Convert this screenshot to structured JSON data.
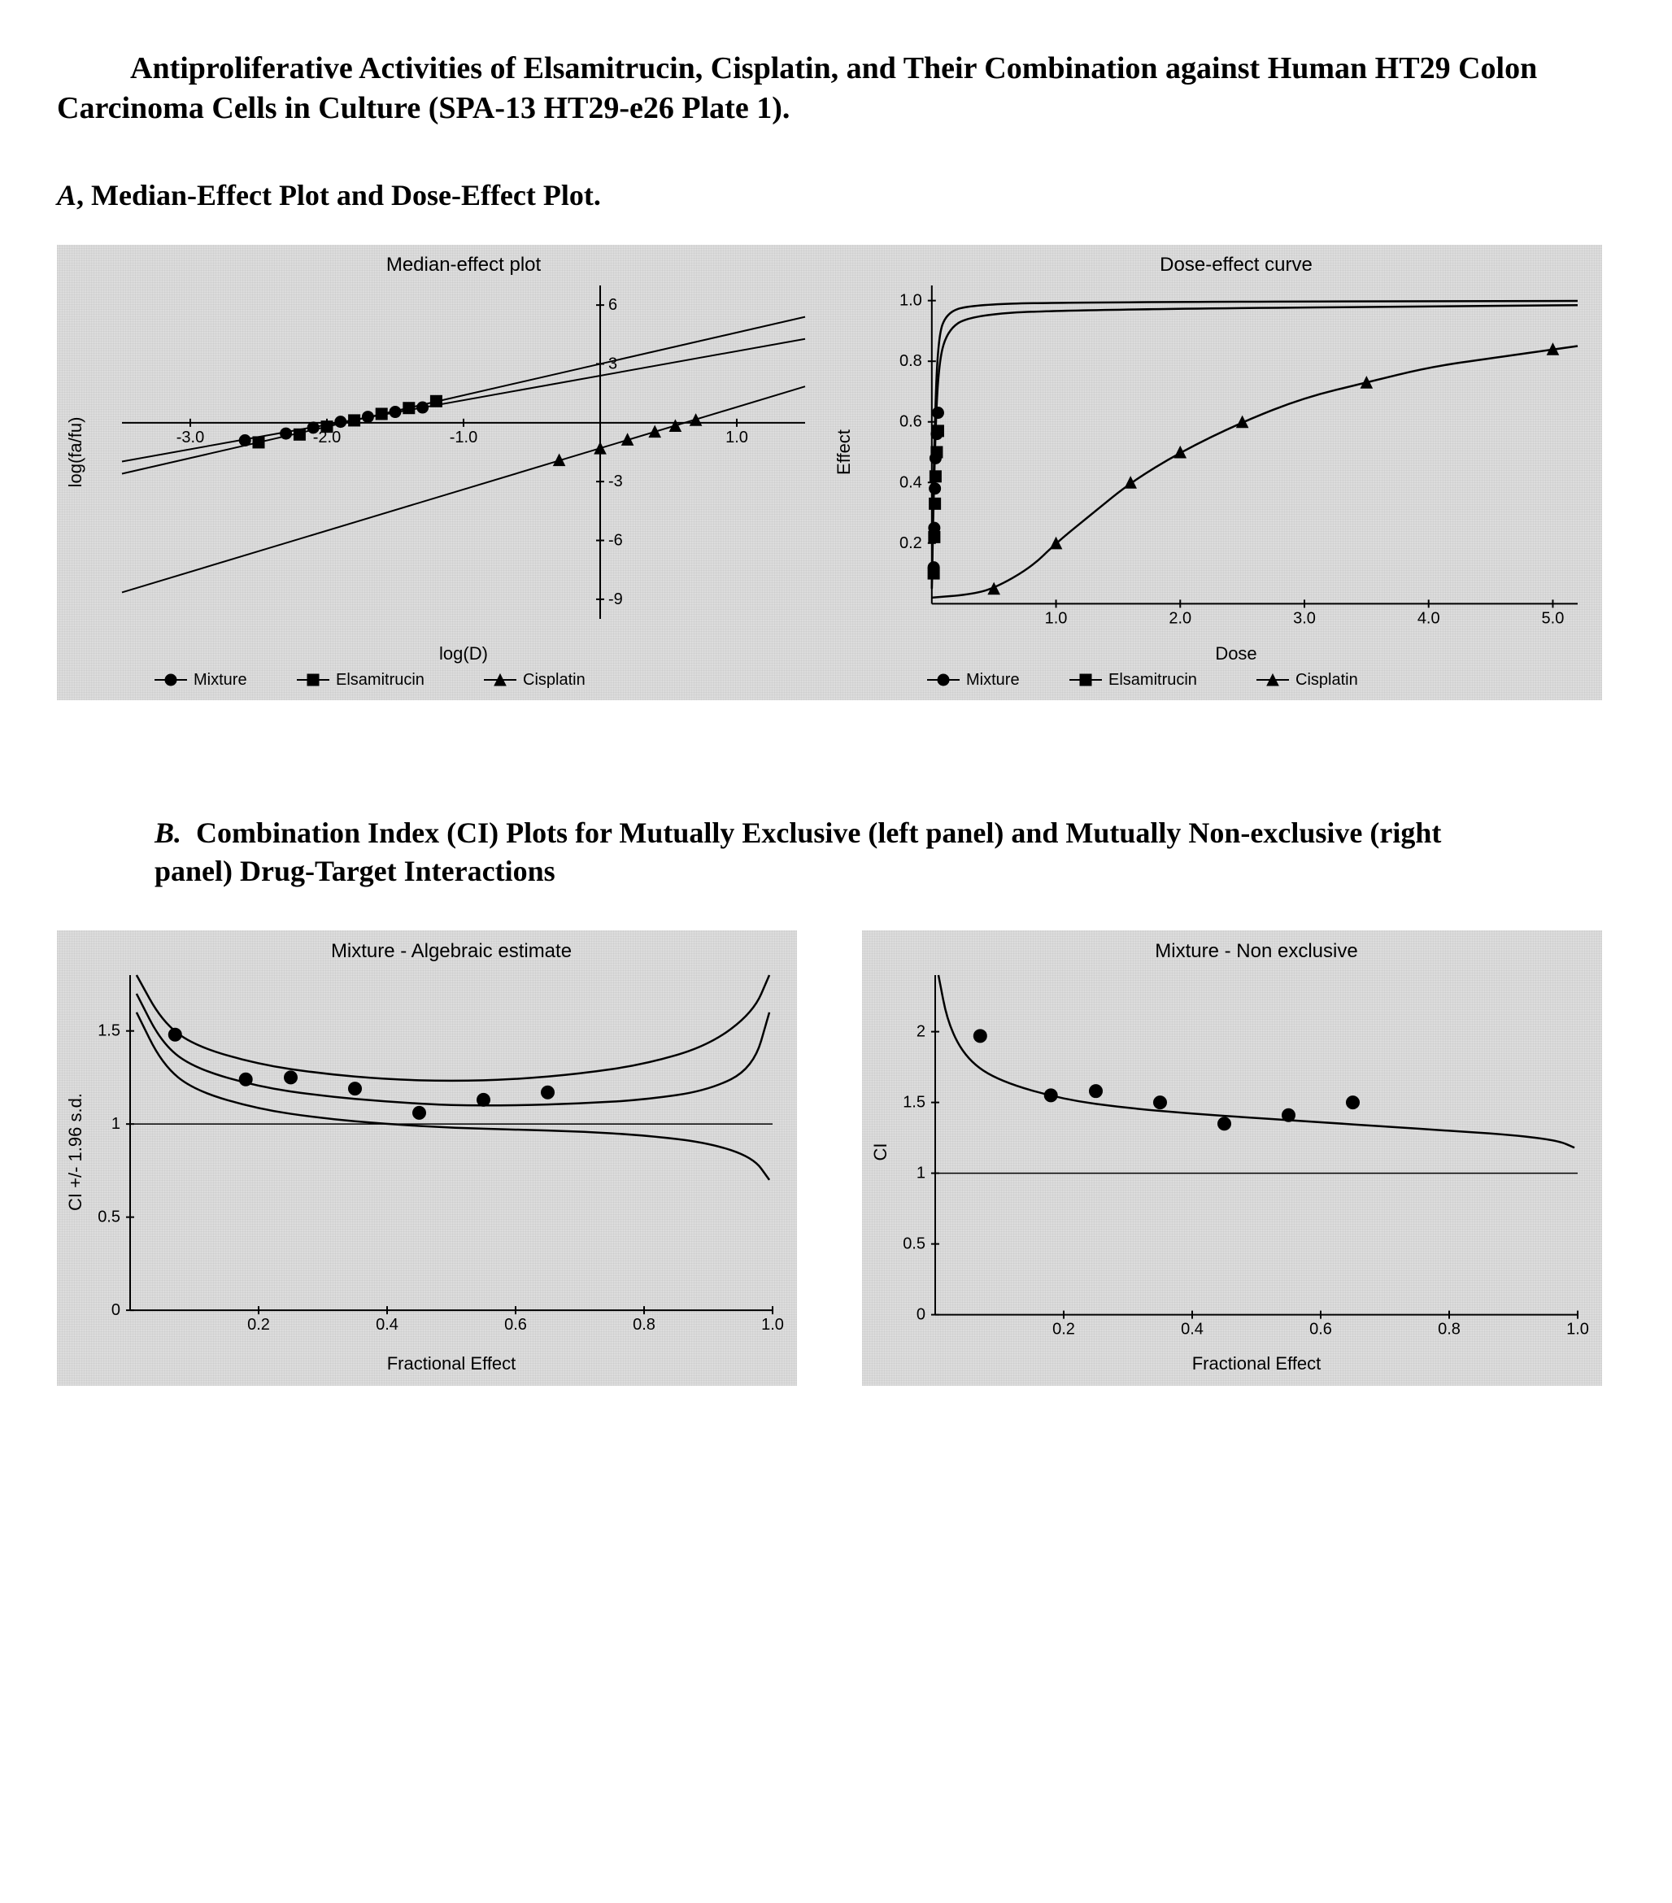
{
  "title": "Antiproliferative Activities of Elsamitrucin, Cisplatin, and Their Combination against Human HT29 Colon Carcinoma Cells in Culture (SPA-13 HT29-e26 Plate 1).",
  "sectionA_label_prefix": "A",
  "sectionA_label_text": ", Median-Effect Plot and Dose-Effect Plot.",
  "sectionB_label_prefix": "B.",
  "sectionB_label_text": "Combination Index (CI) Plots for Mutually Exclusive (left panel) and Mutually Non-exclusive (right panel) Drug-Target Interactions",
  "panelA_width": 1900,
  "panelA_height": 560,
  "median_effect": {
    "title": "Median-effect plot",
    "xlabel": "log(D)",
    "ylabel": "log(fa/fu)",
    "xlim": [
      -3.5,
      1.5
    ],
    "ylim": [
      -10,
      7
    ],
    "xticks": [
      -3.0,
      -2.0,
      -1.0,
      1.0
    ],
    "yticks": [
      -9,
      -6,
      -3,
      3,
      6
    ],
    "series": {
      "Mixture": {
        "slope": 1.25,
        "intercept": 2.4,
        "marker": "circle"
      },
      "Elsamitrucin": {
        "slope": 1.6,
        "intercept": 3.0,
        "marker": "square"
      },
      "Cisplatin": {
        "slope": 2.1,
        "intercept": -1.3,
        "marker": "triangle"
      }
    },
    "points": {
      "Mixture": [
        [
          -2.6,
          -0.9
        ],
        [
          -2.3,
          -0.55
        ],
        [
          -2.1,
          -0.25
        ],
        [
          -1.9,
          0.05
        ],
        [
          -1.7,
          0.3
        ],
        [
          -1.5,
          0.55
        ],
        [
          -1.3,
          0.78
        ]
      ],
      "Elsamitrucin": [
        [
          -2.5,
          -1.0
        ],
        [
          -2.2,
          -0.6
        ],
        [
          -2.0,
          -0.2
        ],
        [
          -1.8,
          0.12
        ],
        [
          -1.6,
          0.45
        ],
        [
          -1.4,
          0.75
        ],
        [
          -1.2,
          1.1
        ]
      ],
      "Cisplatin": [
        [
          -0.3,
          -1.9
        ],
        [
          0.0,
          -1.3
        ],
        [
          0.2,
          -0.85
        ],
        [
          0.4,
          -0.45
        ],
        [
          0.55,
          -0.15
        ],
        [
          0.7,
          0.15
        ]
      ]
    },
    "line_color": "#000000",
    "marker_color": "#000000",
    "background": "#dcdcdc"
  },
  "dose_effect": {
    "title": "Dose-effect curve",
    "xlabel": "Dose",
    "ylabel": "Effect",
    "xlim": [
      -0.3,
      5.2
    ],
    "ylim": [
      -0.05,
      1.05
    ],
    "xticks": [
      1.0,
      2.0,
      3.0,
      4.0,
      5.0
    ],
    "yticks": [
      0.2,
      0.4,
      0.6,
      0.8,
      1.0
    ],
    "series": {
      "Mixture": {
        "curve": [
          [
            0,
            0.05
          ],
          [
            0.02,
            0.55
          ],
          [
            0.05,
            0.88
          ],
          [
            0.12,
            0.96
          ],
          [
            0.3,
            0.985
          ],
          [
            1,
            0.995
          ],
          [
            5.2,
            0.999
          ]
        ],
        "marker": "circle"
      },
      "Elsamitrucin": {
        "curve": [
          [
            0,
            0.05
          ],
          [
            0.02,
            0.45
          ],
          [
            0.05,
            0.78
          ],
          [
            0.12,
            0.9
          ],
          [
            0.3,
            0.95
          ],
          [
            1,
            0.97
          ],
          [
            5.2,
            0.985
          ]
        ],
        "marker": "square"
      },
      "Cisplatin": {
        "curve": [
          [
            0,
            0.02
          ],
          [
            0.3,
            0.03
          ],
          [
            0.5,
            0.05
          ],
          [
            0.8,
            0.12
          ],
          [
            1.0,
            0.2
          ],
          [
            1.3,
            0.3
          ],
          [
            1.6,
            0.4
          ],
          [
            2.0,
            0.5
          ],
          [
            2.5,
            0.6
          ],
          [
            3.0,
            0.68
          ],
          [
            3.5,
            0.73
          ],
          [
            4.0,
            0.78
          ],
          [
            4.5,
            0.81
          ],
          [
            5.2,
            0.85
          ]
        ],
        "marker": "triangle"
      }
    },
    "points": {
      "Mixture": [
        [
          0.015,
          0.12
        ],
        [
          0.02,
          0.25
        ],
        [
          0.025,
          0.38
        ],
        [
          0.03,
          0.48
        ],
        [
          0.04,
          0.56
        ],
        [
          0.05,
          0.63
        ]
      ],
      "Elsamitrucin": [
        [
          0.015,
          0.1
        ],
        [
          0.02,
          0.22
        ],
        [
          0.025,
          0.33
        ],
        [
          0.03,
          0.42
        ],
        [
          0.04,
          0.5
        ],
        [
          0.05,
          0.57
        ]
      ],
      "Cisplatin": [
        [
          0.5,
          0.05
        ],
        [
          1.0,
          0.2
        ],
        [
          1.6,
          0.4
        ],
        [
          2.0,
          0.5
        ],
        [
          2.5,
          0.6
        ],
        [
          3.5,
          0.73
        ],
        [
          5.0,
          0.84
        ]
      ]
    },
    "line_color": "#000000",
    "marker_color": "#000000",
    "background": "#dcdcdc"
  },
  "legend_items": [
    {
      "name": "Mixture",
      "marker": "circle"
    },
    {
      "name": "Elsamitrucin",
      "marker": "square"
    },
    {
      "name": "Cisplatin",
      "marker": "triangle"
    }
  ],
  "panelB_width": 910,
  "panelB_height": 560,
  "ci_algebraic": {
    "title": "Mixture - Algebraic estimate",
    "xlabel": "Fractional Effect",
    "ylabel": "CI +/- 1.96 s.d.",
    "xlim": [
      0,
      1.0
    ],
    "ylim": [
      -0.1,
      1.8
    ],
    "xticks": [
      0.2,
      0.4,
      0.6,
      0.8,
      1.0
    ],
    "yticks": [
      0,
      0.5,
      1.0,
      1.5
    ],
    "hline_at": 1.0,
    "center_curve": [
      [
        0.01,
        1.7
      ],
      [
        0.05,
        1.43
      ],
      [
        0.1,
        1.3
      ],
      [
        0.2,
        1.2
      ],
      [
        0.3,
        1.15
      ],
      [
        0.4,
        1.12
      ],
      [
        0.5,
        1.1
      ],
      [
        0.6,
        1.1
      ],
      [
        0.7,
        1.11
      ],
      [
        0.8,
        1.13
      ],
      [
        0.9,
        1.18
      ],
      [
        0.97,
        1.3
      ],
      [
        0.995,
        1.6
      ]
    ],
    "upper_curve": [
      [
        0.01,
        1.8
      ],
      [
        0.05,
        1.55
      ],
      [
        0.1,
        1.42
      ],
      [
        0.2,
        1.32
      ],
      [
        0.3,
        1.27
      ],
      [
        0.4,
        1.24
      ],
      [
        0.5,
        1.23
      ],
      [
        0.6,
        1.24
      ],
      [
        0.7,
        1.27
      ],
      [
        0.8,
        1.32
      ],
      [
        0.9,
        1.42
      ],
      [
        0.97,
        1.6
      ],
      [
        0.995,
        1.8
      ]
    ],
    "lower_curve": [
      [
        0.01,
        1.6
      ],
      [
        0.05,
        1.32
      ],
      [
        0.1,
        1.18
      ],
      [
        0.2,
        1.08
      ],
      [
        0.3,
        1.03
      ],
      [
        0.4,
        1.0
      ],
      [
        0.5,
        0.98
      ],
      [
        0.6,
        0.97
      ],
      [
        0.7,
        0.96
      ],
      [
        0.8,
        0.94
      ],
      [
        0.9,
        0.9
      ],
      [
        0.97,
        0.82
      ],
      [
        0.995,
        0.7
      ]
    ],
    "points": [
      [
        0.07,
        1.48
      ],
      [
        0.18,
        1.24
      ],
      [
        0.25,
        1.25
      ],
      [
        0.35,
        1.19
      ],
      [
        0.45,
        1.06
      ],
      [
        0.55,
        1.13
      ],
      [
        0.65,
        1.17
      ]
    ],
    "marker": "circle",
    "line_color": "#000000",
    "background": "#dcdcdc"
  },
  "ci_nonexclusive": {
    "title": "Mixture - Non exclusive",
    "xlabel": "Fractional Effect",
    "ylabel": "CI",
    "xlim": [
      0,
      1.0
    ],
    "ylim": [
      -0.1,
      2.4
    ],
    "xticks": [
      0.2,
      0.4,
      0.6,
      0.8,
      1.0
    ],
    "yticks": [
      0,
      0.5,
      1.0,
      1.5,
      2.0
    ],
    "hline_at": 1.0,
    "center_curve": [
      [
        0.005,
        2.4
      ],
      [
        0.02,
        2.05
      ],
      [
        0.05,
        1.8
      ],
      [
        0.1,
        1.65
      ],
      [
        0.2,
        1.52
      ],
      [
        0.3,
        1.46
      ],
      [
        0.4,
        1.42
      ],
      [
        0.5,
        1.39
      ],
      [
        0.6,
        1.36
      ],
      [
        0.7,
        1.33
      ],
      [
        0.8,
        1.3
      ],
      [
        0.9,
        1.27
      ],
      [
        0.97,
        1.23
      ],
      [
        0.995,
        1.18
      ]
    ],
    "points": [
      [
        0.07,
        1.97
      ],
      [
        0.18,
        1.55
      ],
      [
        0.25,
        1.58
      ],
      [
        0.35,
        1.5
      ],
      [
        0.45,
        1.35
      ],
      [
        0.55,
        1.41
      ],
      [
        0.65,
        1.5
      ]
    ],
    "marker": "circle",
    "line_color": "#000000",
    "background": "#dcdcdc"
  },
  "colors": {
    "panel_bg": "#dcdcdc",
    "axis": "#000000",
    "text": "#000000",
    "page_bg": "#ffffff"
  },
  "typography": {
    "title_pt": 38,
    "section_pt": 36,
    "chart_title_pt": 24,
    "axis_label_pt": 22,
    "tick_pt": 20,
    "legend_pt": 20,
    "body_family": "Times New Roman",
    "chart_family": "Arial"
  }
}
